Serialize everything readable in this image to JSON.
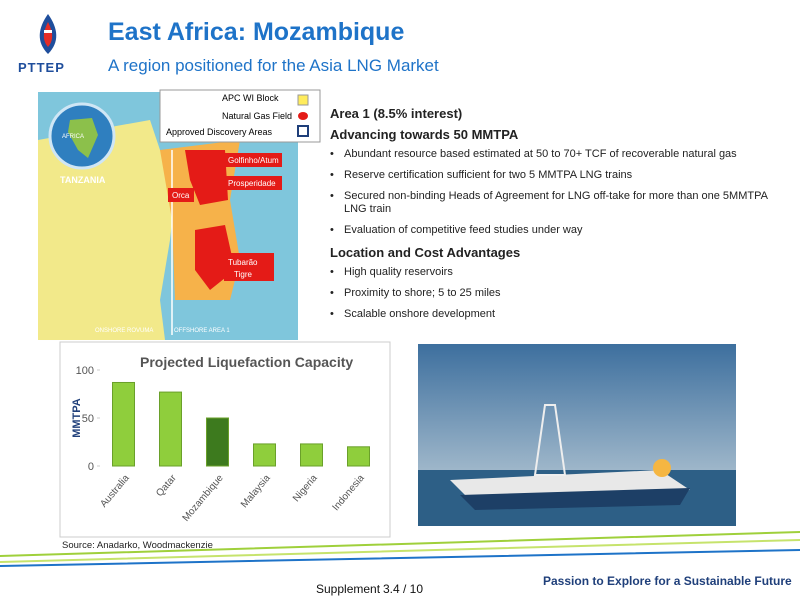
{
  "header": {
    "logo": "PTTEP",
    "title": "East Africa: Mozambique",
    "subtitle": "A region positioned for the Asia LNG Market"
  },
  "map": {
    "legend": [
      "APC WI Block",
      "Natural Gas Field",
      "Approved Discovery Areas"
    ],
    "labels": [
      "AFRICA",
      "TANZANIA",
      "Golfinho/Atum",
      "Prosperidade",
      "Orca",
      "Tubarão",
      "Tigre",
      "ONSHORE ROVUMA",
      "OFFSHORE AREA 1"
    ]
  },
  "content": {
    "sections": [
      {
        "heading": "Area 1 (8.5% interest)"
      },
      {
        "heading": "Advancing towards 50 MMTPA",
        "bullets": [
          "Abundant resource based estimated at 50 to 70+ TCF of recoverable natural gas",
          "Reserve certification sufficient for two 5 MMTPA LNG trains",
          "Secured non-binding Heads of Agreement for LNG off-take for more than one 5MMTPA LNG train",
          "Evaluation of competitive feed studies under way"
        ]
      },
      {
        "heading": "Location and Cost Advantages",
        "bullets": [
          "High quality reservoirs",
          "Proximity to shore; 5 to 25 miles",
          "Scalable onshore development"
        ]
      }
    ]
  },
  "chart_data": {
    "type": "bar",
    "title": "Projected Liquefaction Capacity",
    "y_label": "MMTPA",
    "categories": [
      "Australia",
      "Qatar",
      "Mozambique",
      "Malaysia",
      "Nigeria",
      "Indonesia"
    ],
    "values": [
      87,
      77,
      50,
      23,
      23,
      20
    ],
    "colors": [
      "#8fce3c",
      "#8fce3c",
      "#3d7a1e",
      "#8fce3c",
      "#8fce3c",
      "#8fce3c"
    ],
    "ylim": [
      0,
      100
    ],
    "yticks": [
      0,
      50,
      100
    ],
    "grid": false
  },
  "footer": {
    "source": "Source: Anadarko, Woodmackenzie",
    "section": "Supplement",
    "page": "3.4 / 10",
    "slogan": "Passion to Explore for a Sustainable Future"
  }
}
